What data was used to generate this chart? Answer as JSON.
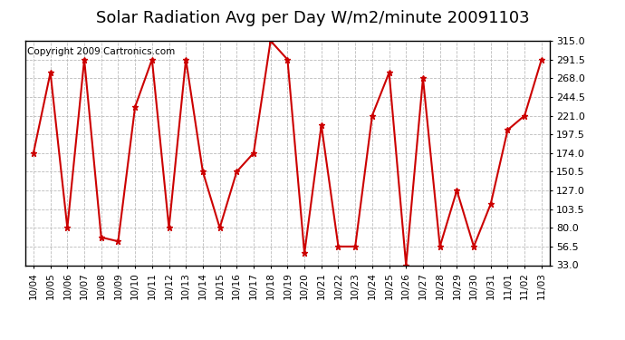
{
  "title": "Solar Radiation Avg per Day W/m2/minute 20091103",
  "copyright_text": "Copyright 2009 Cartronics.com",
  "dates": [
    "10/04",
    "10/05",
    "10/06",
    "10/07",
    "10/08",
    "10/09",
    "10/10",
    "10/11",
    "10/12",
    "10/13",
    "10/14",
    "10/15",
    "10/16",
    "10/17",
    "10/18",
    "10/19",
    "10/20",
    "10/21",
    "10/22",
    "10/23",
    "10/24",
    "10/25",
    "10/26",
    "10/27",
    "10/28",
    "10/29",
    "10/30",
    "10/31",
    "11/01",
    "11/02",
    "11/03"
  ],
  "values": [
    174.0,
    275.0,
    80.0,
    291.5,
    68.0,
    63.0,
    232.0,
    291.5,
    80.0,
    291.5,
    150.5,
    80.0,
    150.5,
    174.0,
    315.0,
    291.5,
    48.0,
    209.0,
    56.5,
    56.5,
    221.0,
    275.0,
    33.0,
    268.0,
    56.5,
    127.0,
    56.5,
    110.0,
    203.0,
    221.0,
    291.5
  ],
  "line_color": "#cc0000",
  "marker": "*",
  "marker_size": 5,
  "grid_color": "#bbbbbb",
  "bg_color": "#ffffff",
  "ylim": [
    33.0,
    315.0
  ],
  "yticks": [
    33.0,
    56.5,
    80.0,
    103.5,
    127.0,
    150.5,
    174.0,
    197.5,
    221.0,
    244.5,
    268.0,
    291.5,
    315.0
  ],
  "title_fontsize": 13,
  "copyright_fontsize": 7.5
}
